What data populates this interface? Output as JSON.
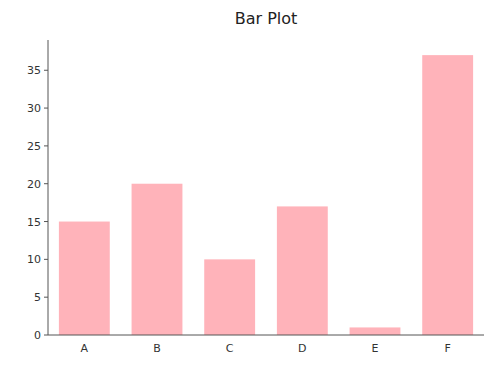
{
  "chart_data": {
    "type": "bar",
    "title": "Bar Plot",
    "categories": [
      "A",
      "B",
      "C",
      "D",
      "E",
      "F"
    ],
    "values": [
      15,
      20,
      10,
      17,
      1,
      37
    ],
    "color": "#ffb3ba",
    "ylim": [
      0,
      39
    ],
    "yticks": [
      0,
      5,
      10,
      15,
      20,
      25,
      30,
      35
    ],
    "grid": false
  }
}
